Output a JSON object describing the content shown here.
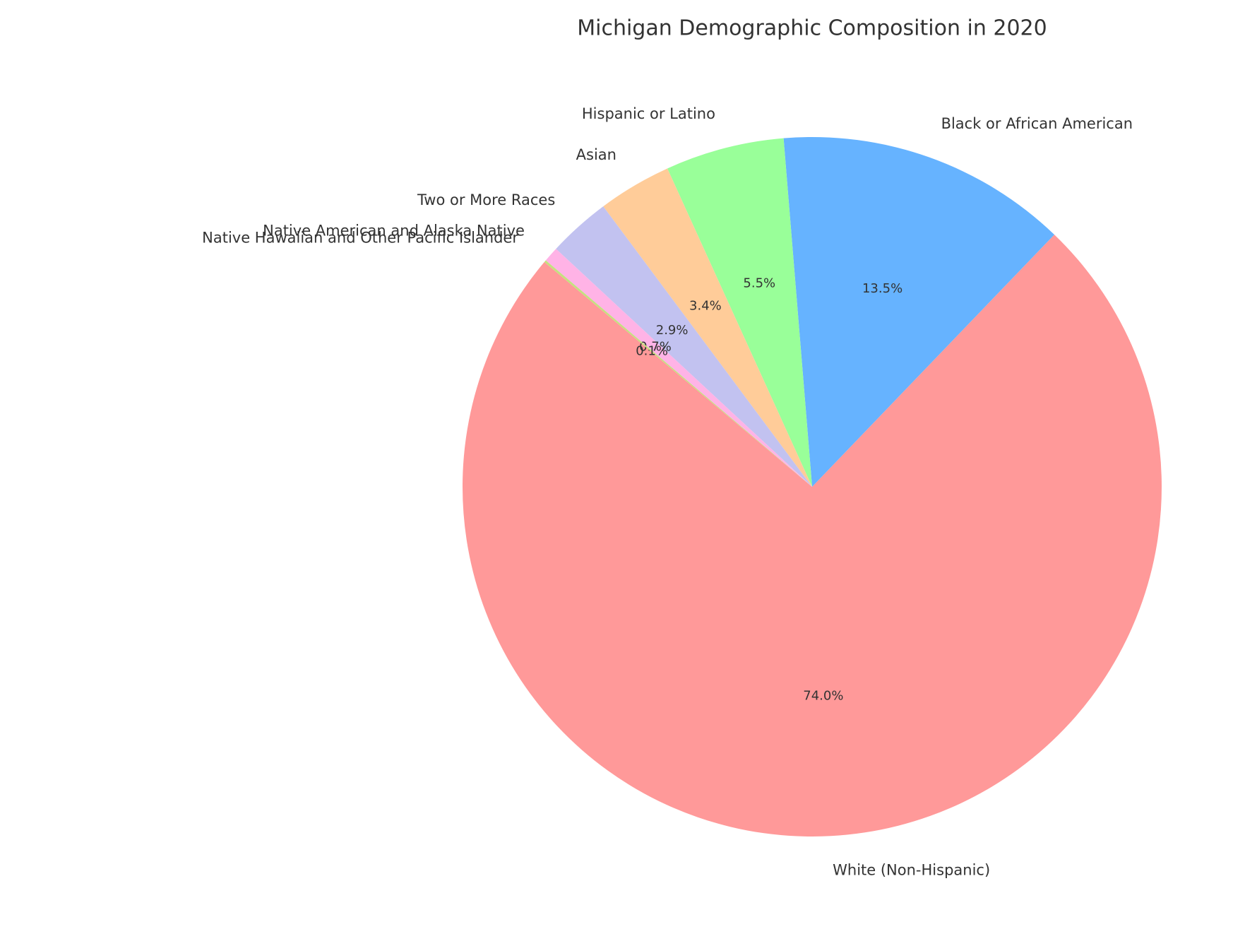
{
  "chart_data": {
    "type": "pie",
    "title": "Michigan Demographic Composition in 2020",
    "categories": [
      "White (Non-Hispanic)",
      "Black or African American",
      "Hispanic or Latino",
      "Asian",
      "Two or More Races",
      "Native American and Alaska Native",
      "Native Hawaiian and Other Pacific Islander"
    ],
    "values": [
      74.0,
      13.5,
      5.5,
      3.4,
      2.9,
      0.7,
      0.1
    ],
    "value_labels": [
      "74.0%",
      "13.5%",
      "5.5%",
      "3.4%",
      "2.9%",
      "0.7%",
      "0.1%"
    ],
    "colors": [
      "#ff9999",
      "#66b3ff",
      "#99ff99",
      "#ffcc99",
      "#c2c2f0",
      "#ffb3e6",
      "#c4e17f"
    ]
  }
}
